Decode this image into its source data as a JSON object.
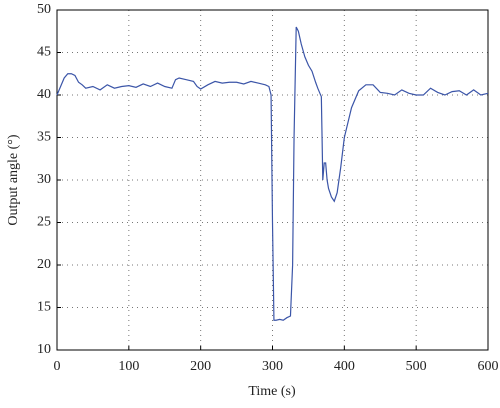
{
  "chart_data": {
    "type": "line",
    "xlabel": "Time (s)",
    "ylabel": "Output angle (°)",
    "x": [
      0,
      5,
      10,
      15,
      20,
      25,
      30,
      35,
      40,
      50,
      60,
      70,
      80,
      90,
      100,
      110,
      120,
      130,
      140,
      150,
      160,
      165,
      170,
      180,
      190,
      195,
      200,
      210,
      220,
      230,
      240,
      250,
      260,
      270,
      280,
      290,
      295,
      298,
      300,
      302,
      305,
      310,
      315,
      320,
      325,
      328,
      330,
      333,
      336,
      340,
      345,
      350,
      355,
      360,
      363,
      366,
      368,
      369,
      370,
      372,
      374,
      376,
      378,
      382,
      386,
      390,
      395,
      400,
      410,
      420,
      430,
      440,
      450,
      460,
      470,
      480,
      490,
      500,
      510,
      520,
      530,
      540,
      550,
      560,
      570,
      580,
      590,
      600
    ],
    "series": [
      {
        "color": "#3b55a8",
        "values": [
          40,
          41,
          42,
          42.5,
          42.5,
          42.3,
          41.5,
          41.2,
          40.8,
          41,
          40.6,
          41.2,
          40.8,
          41,
          41.1,
          40.9,
          41.3,
          41,
          41.4,
          41,
          40.8,
          41.8,
          42,
          41.8,
          41.6,
          41,
          40.7,
          41.2,
          41.6,
          41.4,
          41.5,
          41.5,
          41.3,
          41.6,
          41.4,
          41.2,
          41,
          40,
          25,
          13.5,
          13.5,
          13.6,
          13.5,
          13.8,
          14,
          20,
          35,
          48,
          47.5,
          46,
          44.5,
          43.5,
          42.8,
          41.5,
          40.8,
          40.2,
          39.8,
          35,
          30,
          32,
          32,
          30,
          29,
          28,
          27.5,
          28.5,
          31.5,
          35,
          38.5,
          40.5,
          41.2,
          41.2,
          40.3,
          40.2,
          40,
          40.6,
          40.2,
          40,
          40,
          40.8,
          40.3,
          40,
          40.4,
          40.5,
          40,
          40.6,
          40,
          40.2
        ]
      }
    ],
    "xlim": [
      0,
      600
    ],
    "xticks": [
      0,
      100,
      200,
      300,
      400,
      500,
      600
    ],
    "ylim": [
      10,
      50
    ],
    "yticks": [
      10,
      15,
      20,
      25,
      30,
      35,
      40,
      45,
      50
    ],
    "grid": true
  }
}
